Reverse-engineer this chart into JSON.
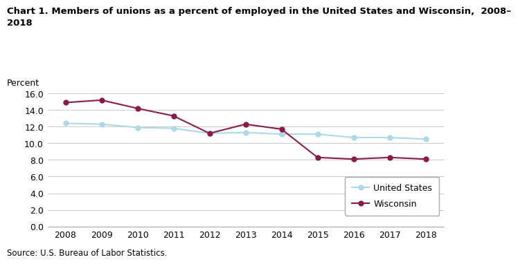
{
  "title_line1": "Chart 1. Members of unions as a percent of employed in the United States and Wisconsin,  2008–",
  "title_line2": "2018",
  "ylabel_text": "Percent",
  "source": "Source: U.S. Bureau of Labor Statistics.",
  "years": [
    2008,
    2009,
    2010,
    2011,
    2012,
    2013,
    2014,
    2015,
    2016,
    2017,
    2018
  ],
  "us_values": [
    12.4,
    12.3,
    11.9,
    11.8,
    11.2,
    11.3,
    11.1,
    11.1,
    10.7,
    10.7,
    10.5
  ],
  "wi_values": [
    14.9,
    15.2,
    14.2,
    13.3,
    11.2,
    12.3,
    11.7,
    8.3,
    8.1,
    8.3,
    8.1
  ],
  "us_color": "#add8e6",
  "wi_color": "#8b1a4a",
  "ylim": [
    0,
    16.0
  ],
  "yticks": [
    0.0,
    2.0,
    4.0,
    6.0,
    8.0,
    10.0,
    12.0,
    14.0,
    16.0
  ],
  "title_fontsize": 9.5,
  "tick_fontsize": 9,
  "legend_fontsize": 9,
  "source_fontsize": 8.5,
  "percent_fontsize": 9,
  "grid_color": "#cccccc",
  "marker_size": 5,
  "line_width": 1.5,
  "legend_us": "United States",
  "legend_wi": "Wisconsin"
}
